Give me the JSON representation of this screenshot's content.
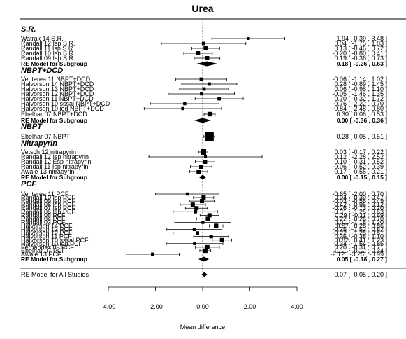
{
  "chart_data": {
    "type": "forest",
    "title": "Urea",
    "xlabel": "Mean difference",
    "xlim": [
      -4,
      4
    ],
    "xticks": [
      "-4.00",
      "-2.00",
      "0.00",
      "2.00",
      "4.00"
    ],
    "groups": [
      {
        "name": "S.R.",
        "studies": [
          {
            "label": "Watrak 14 S.R.",
            "est": 1.94,
            "lo": 0.39,
            "hi": 3.48,
            "ci_text": "1.94 [ 0.39 , 3.48 ]",
            "w": 1.0
          },
          {
            "label": "Randall 12 Isp S.R.",
            "est": 0.04,
            "lo": -1.75,
            "hi": 1.83,
            "ci_text": "0.04 [ -1.75 , 1.83 ]",
            "w": 1.2
          },
          {
            "label": "Randall 11 Isp S.R.",
            "est": 0.13,
            "lo": -0.46,
            "hi": 0.72,
            "ci_text": "0.13 [ -0.46 , 0.72 ]",
            "w": 1.5
          },
          {
            "label": "Randall 10 Isp S.R.",
            "est": -0.2,
            "lo": -0.8,
            "hi": 0.41,
            "ci_text": "-0.20 [ -0.80 , 0.41 ]",
            "w": 1.5
          },
          {
            "label": "Randall 09 Isp S.R.",
            "est": 0.19,
            "lo": -0.36,
            "hi": 0.73,
            "ci_text": "0.19 [ -0.36 , 0.73 ]",
            "w": 1.5
          }
        ],
        "re": {
          "label": "RE Model for Subgroup",
          "est": 0.18,
          "lo": -0.26,
          "hi": 0.63,
          "ci_text": "0.18 [ -0.26 , 0.63 ]"
        }
      },
      {
        "name": "NBPT+DCD",
        "studies": [
          {
            "label": "Venterea 11 NBPT+DCD",
            "est": -0.06,
            "lo": -1.14,
            "hi": 1.02,
            "ci_text": "-0.06 [ -1.14 , 1.02 ]",
            "w": 1.2
          },
          {
            "label": "Halvorson 14 NBPT+DCD",
            "est": 0.28,
            "lo": -0.89,
            "hi": 1.45,
            "ci_text": "0.28 [ -0.89 , 1.45 ]",
            "w": 1.2
          },
          {
            "label": "Halvorson 13 NBPT+DCD",
            "est": 0.06,
            "lo": -0.98,
            "hi": 1.1,
            "ci_text": "0.06 [ -0.98 , 1.10 ]",
            "w": 1.2
          },
          {
            "label": "Halvorson 12 NBPT+DCD",
            "est": -0.05,
            "lo": -1.46,
            "hi": 1.35,
            "ci_text": "-0.05 [ -1.46 , 1.35 ]",
            "w": 1.1
          },
          {
            "label": "Halvorson 11 NBPT+DCD",
            "est": 0.7,
            "lo": -0.32,
            "hi": 1.72,
            "ci_text": "0.70 [ -0.32 , 1.72 ]",
            "w": 1.2
          },
          {
            "label": "Halvorson 10 sssal NBPT+DCD",
            "est": -0.76,
            "lo": -2.22,
            "hi": 0.7,
            "ci_text": "-0.76 [ -2.22 , 0.70 ]",
            "w": 1.1
          },
          {
            "label": "Halvorson 10 ied NBPT+DCD",
            "est": -0.84,
            "lo": -2.48,
            "hi": 0.8,
            "ci_text": "-0.84 [ -2.48 , 0.80 ]",
            "w": 1.1
          },
          {
            "label": "Ebelhar 07 NBPT+DCD",
            "est": 0.3,
            "lo": 0.06,
            "hi": 0.53,
            "ci_text": "0.30 [ 0.06 , 0.53 ]",
            "w": 1.6
          }
        ],
        "re": {
          "label": "RE Model for Subgroup",
          "est": 0.0,
          "lo": -0.36,
          "hi": 0.36,
          "ci_text": "0.00 [ -0.36 , 0.36 ]"
        }
      },
      {
        "name": "NBPT",
        "studies": [
          {
            "label": "Ebelhar 07 NBPT",
            "est": 0.28,
            "lo": 0.05,
            "hi": 0.51,
            "ci_text": "0.28 [ 0.05 , 0.51 ]",
            "w": 3.2
          }
        ],
        "re": null
      },
      {
        "name": "Nitrapyrin",
        "studies": [
          {
            "label": "Vetsch 12 nitrapyrin",
            "est": 0.03,
            "lo": -0.17,
            "hi": 0.22,
            "ci_text": "0.03 [ -0.17 , 0.22 ]",
            "w": 2.0
          },
          {
            "label": "Randall 12 Isp nitrapyrin",
            "est": 0.12,
            "lo": -2.28,
            "hi": 2.52,
            "ci_text": "0.12 [ -2.28 , 2.52 ]",
            "w": 1.0
          },
          {
            "label": "Randall 12 Esp nitrapyrin",
            "est": 0.1,
            "lo": -0.31,
            "hi": 0.52,
            "ci_text": "0.10 [ -0.31 , 0.52 ]",
            "w": 1.5
          },
          {
            "label": "Randall 11 Isp nitrapyrin",
            "est": -0.06,
            "lo": -0.52,
            "hi": 0.39,
            "ci_text": "-0.06 [ -0.52 , 0.39 ]",
            "w": 1.5
          },
          {
            "label": "Awale 13 nitrapyrin",
            "est": -0.17,
            "lo": -0.55,
            "hi": 0.21,
            "ci_text": "-0.17 [ -0.55 , 0.21 ]",
            "w": 1.5
          }
        ],
        "re": {
          "label": "RE Model for Subgroup",
          "est": 0.0,
          "lo": -0.15,
          "hi": 0.15,
          "ci_text": "0.00 [ -0.15 , 0.15 ]"
        }
      },
      {
        "name": "PCF",
        "studies": [
          {
            "label": "Venterea 11 PCF",
            "est": -0.65,
            "lo": -2.0,
            "hi": 0.7,
            "ci_text": "-0.65 [ -2.00 , 0.70 ]",
            "w": 1.1
          },
          {
            "label": "Randall 10 Isp PCF",
            "est": 0.04,
            "lo": -0.39,
            "hi": 0.47,
            "ci_text": "0.04 [ -0.39 , 0.47 ]",
            "w": 1.5
          },
          {
            "label": "Randall 09 Isp PCF",
            "est": -0.03,
            "lo": -0.56,
            "hi": 0.49,
            "ci_text": "-0.03 [ -0.56 , 0.49 ]",
            "w": 1.5
          },
          {
            "label": "Randall 08 Isp PCF",
            "est": -0.42,
            "lo": -0.95,
            "hi": 0.12,
            "ci_text": "-0.42 [ -0.95 , 0.12 ]",
            "w": 1.5
          },
          {
            "label": "Randall 07 Isp PCF",
            "est": -0.26,
            "lo": -0.73,
            "hi": 0.2,
            "ci_text": "-0.26 [ -0.73 , 0.20 ]",
            "w": 1.5
          },
          {
            "label": "Randall 06 Isp PCF",
            "est": -0.31,
            "lo": -1.25,
            "hi": 0.63,
            "ci_text": "-0.31 [ -1.25 , 0.63 ]",
            "w": 1.2
          },
          {
            "label": "Randall 05 PCF",
            "est": 0.29,
            "lo": -0.11,
            "hi": 0.69,
            "ci_text": "0.29 [ -0.11 , 0.69 ]",
            "w": 1.5
          },
          {
            "label": "Randall 04 PCF",
            "est": 0.22,
            "lo": -0.26,
            "hi": 0.7,
            "ci_text": "0.22 [ -0.26 , 0.70 ]",
            "w": 1.5
          },
          {
            "label": "Randall 03 PCF",
            "est": 0.01,
            "lo": -1.18,
            "hi": 1.2,
            "ci_text": "0.01 [ -1.18 , 1.20 ]",
            "w": 1.1
          },
          {
            "label": "Halvorson 14 PCF",
            "est": 0.57,
            "lo": 0.28,
            "hi": 0.86,
            "ci_text": "0.57 [ 0.28 , 0.86 ]",
            "w": 1.6
          },
          {
            "label": "Halvorson 13 PCF",
            "est": -0.35,
            "lo": -1.52,
            "hi": 0.82,
            "ci_text": "-0.35 [ -1.52 , 0.82 ]",
            "w": 1.2
          },
          {
            "label": "Halvorson 12 PCF",
            "est": -0.22,
            "lo": -1.25,
            "hi": 0.81,
            "ci_text": "-0.22 [ -1.25 , 0.81 ]",
            "w": 1.2
          },
          {
            "label": "Halvorson 11 PCF",
            "est": 0.36,
            "lo": -0.38,
            "hi": 1.1,
            "ci_text": "0.36 [ -0.38 , 1.10 ]",
            "w": 1.3
          },
          {
            "label": "Halvorson 10 sssal PCF",
            "est": 0.82,
            "lo": 0.41,
            "hi": 1.23,
            "ci_text": "0.82 [ 0.41 , 1.23 ]",
            "w": 1.5
          },
          {
            "label": "Halvorson 10 ied PCF",
            "est": -0.34,
            "lo": -1.54,
            "hi": 0.86,
            "ci_text": "-0.34 [ -1.54 , 0.86 ]",
            "w": 1.1
          },
          {
            "label": "Fernandez 09 PCF",
            "est": 0.2,
            "lo": -0.31,
            "hi": 0.71,
            "ci_text": "0.20 [ -0.31 , 0.71 ]",
            "w": 1.5
          },
          {
            "label": "Ebelhar 07 PCF",
            "est": 0.11,
            "lo": -0.12,
            "hi": 0.34,
            "ci_text": "0.11 [ -0.12 , 0.34 ]",
            "w": 1.6
          },
          {
            "label": "Awale 13 PCF",
            "est": -2.12,
            "lo": -3.25,
            "hi": -0.99,
            "ci_text": "-2.12 [ -3.25 , -0.99 ]",
            "w": 1.2
          }
        ],
        "re": {
          "label": "RE Model for Subgroup",
          "est": 0.05,
          "lo": -0.18,
          "hi": 0.27,
          "ci_text": "0.05 [ -0.18 , 0.27 ]"
        }
      }
    ],
    "overall": {
      "label": "RE Model for All Studies",
      "est": 0.07,
      "lo": -0.05,
      "hi": 0.2,
      "ci_text": "0.07 [ -0.05 , 0.20 ]"
    }
  }
}
